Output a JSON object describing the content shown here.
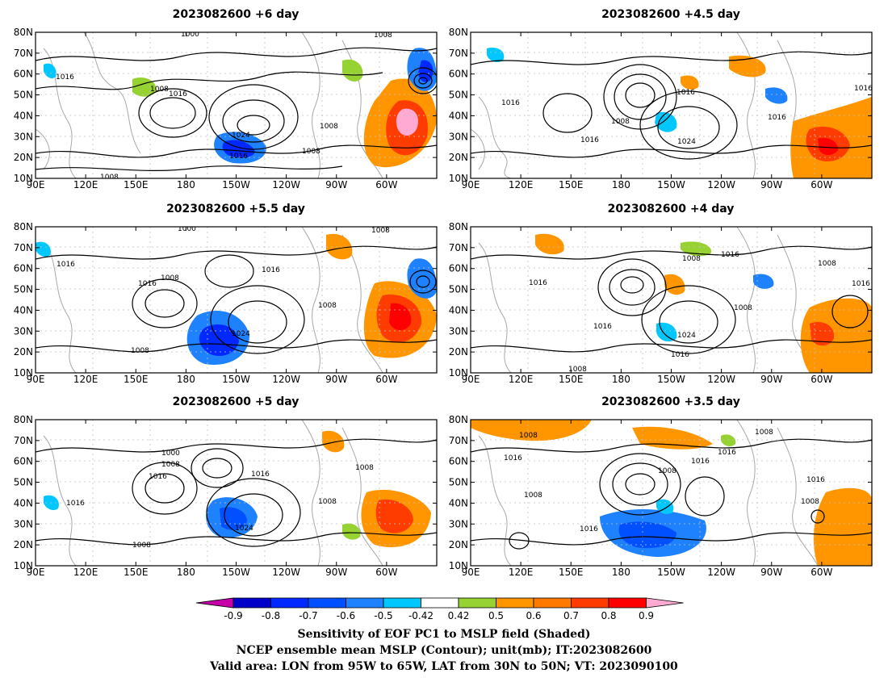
{
  "figure": {
    "panels": [
      {
        "title": "2023082600 +6 day",
        "contour_labels": [
          "1000",
          "1008",
          "1016",
          "1008",
          "1016",
          "1024",
          "1016",
          "1008",
          "1008",
          "1008"
        ]
      },
      {
        "title": "2023082600 +4.5 day",
        "contour_labels": [
          "1016",
          "1016",
          "1008",
          "1016",
          "1024",
          "1016",
          "1016"
        ]
      },
      {
        "title": "2023082600 +5.5 day",
        "contour_labels": [
          "1000",
          "1008",
          "1016",
          "1016",
          "1008",
          "1016",
          "1024",
          "1008",
          "1008"
        ]
      },
      {
        "title": "2023082600 +4 day",
        "contour_labels": [
          "1016",
          "1008",
          "1016",
          "1008",
          "1008",
          "1016",
          "1024",
          "1016",
          "1016",
          "1008"
        ]
      },
      {
        "title": "2023082600 +5 day",
        "contour_labels": [
          "1000",
          "1008",
          "1016",
          "1016",
          "1016",
          "1024",
          "1008",
          "1008",
          "1008"
        ]
      },
      {
        "title": "2023082600 +3.5 day",
        "contour_labels": [
          "1008",
          "1008",
          "1016",
          "1008",
          "1016",
          "1016",
          "1008",
          "1016",
          "1016",
          "1008"
        ]
      }
    ],
    "lon_ticks": [
      "90E",
      "120E",
      "150E",
      "180",
      "150W",
      "120W",
      "90W",
      "60W"
    ],
    "lat_ticks": [
      "10N",
      "20N",
      "30N",
      "40N",
      "50N",
      "60N",
      "70N",
      "80N"
    ],
    "colorbar": {
      "labels": [
        "-0.9",
        "-0.8",
        "-0.7",
        "-0.6",
        "-0.5",
        "-0.42",
        "0.42",
        "0.5",
        "0.6",
        "0.7",
        "0.8",
        "0.9"
      ],
      "colors": [
        "#0000c8",
        "#0028ff",
        "#0050ff",
        "#1e82ff",
        "#00c8ff",
        "#ffffff",
        "#96d232",
        "#ff9600",
        "#ff7800",
        "#ff3c00",
        "#ff0000"
      ],
      "under_color": "#c800aa",
      "over_color": "#ffaad2"
    },
    "footer": [
      "Sensitivity of EOF PC1 to MSLP field (Shaded)",
      "NCEP ensemble mean MSLP (Contour); unit(mb); IT:2023082600",
      "Valid area: LON from 95W to 65W, LAT from 30N to 50N; VT: 2023090100"
    ]
  }
}
